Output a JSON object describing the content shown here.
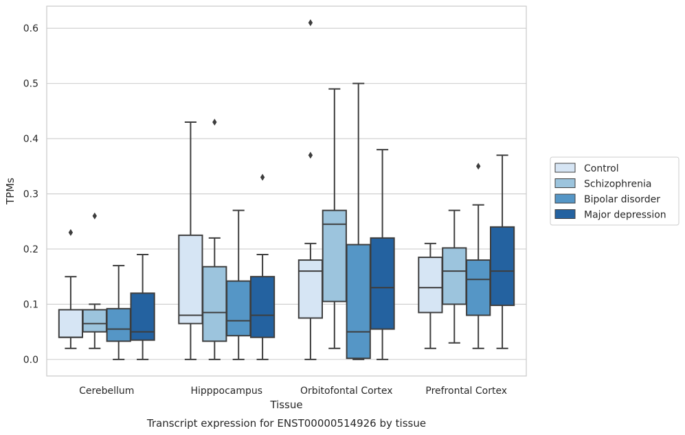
{
  "caption": "Transcript expression for ENST00000514926 by tissue",
  "chart_data": {
    "type": "box",
    "xlabel": "Tissue",
    "ylabel": "TPMs",
    "ylim": [
      -0.03,
      0.64
    ],
    "yticks": [
      0.0,
      0.1,
      0.2,
      0.3,
      0.4,
      0.5,
      0.6
    ],
    "ytick_labels": [
      "0.0",
      "0.1",
      "0.2",
      "0.3",
      "0.4",
      "0.5",
      "0.6"
    ],
    "grid": "horizontal",
    "legend_position": "right-outside",
    "categories": [
      "Cerebellum",
      "Hipppocampus",
      "Orbitofontal Cortex",
      "Prefrontal Cortex"
    ],
    "series": [
      {
        "name": "Control",
        "color": "#d6e5f4",
        "boxes": [
          {
            "whislo": 0.02,
            "q1": 0.04,
            "med": 0.04,
            "q3": 0.09,
            "whishi": 0.15,
            "fliers": [
              0.23
            ]
          },
          {
            "whislo": 0.0,
            "q1": 0.065,
            "med": 0.08,
            "q3": 0.225,
            "whishi": 0.43,
            "fliers": []
          },
          {
            "whislo": 0.0,
            "q1": 0.075,
            "med": 0.16,
            "q3": 0.18,
            "whishi": 0.21,
            "fliers": [
              0.37,
              0.61
            ]
          },
          {
            "whislo": 0.02,
            "q1": 0.085,
            "med": 0.13,
            "q3": 0.185,
            "whishi": 0.21,
            "fliers": []
          }
        ]
      },
      {
        "name": "Schizophrenia",
        "color": "#9cc4dd",
        "boxes": [
          {
            "whislo": 0.02,
            "q1": 0.05,
            "med": 0.065,
            "q3": 0.09,
            "whishi": 0.1,
            "fliers": [
              0.26
            ]
          },
          {
            "whislo": 0.0,
            "q1": 0.033,
            "med": 0.085,
            "q3": 0.168,
            "whishi": 0.22,
            "fliers": [
              0.43
            ]
          },
          {
            "whislo": 0.02,
            "q1": 0.105,
            "med": 0.245,
            "q3": 0.27,
            "whishi": 0.49,
            "fliers": []
          },
          {
            "whislo": 0.03,
            "q1": 0.1,
            "med": 0.16,
            "q3": 0.202,
            "whishi": 0.27,
            "fliers": []
          }
        ]
      },
      {
        "name": "Bipolar disorder",
        "color": "#5596c6",
        "boxes": [
          {
            "whislo": 0.0,
            "q1": 0.033,
            "med": 0.055,
            "q3": 0.092,
            "whishi": 0.17,
            "fliers": []
          },
          {
            "whislo": 0.0,
            "q1": 0.043,
            "med": 0.07,
            "q3": 0.142,
            "whishi": 0.27,
            "fliers": []
          },
          {
            "whislo": 0.0,
            "q1": 0.002,
            "med": 0.05,
            "q3": 0.208,
            "whishi": 0.5,
            "fliers": []
          },
          {
            "whislo": 0.02,
            "q1": 0.08,
            "med": 0.145,
            "q3": 0.18,
            "whishi": 0.28,
            "fliers": [
              0.35
            ]
          }
        ]
      },
      {
        "name": "Major depression",
        "color": "#2462a0",
        "boxes": [
          {
            "whislo": 0.0,
            "q1": 0.035,
            "med": 0.05,
            "q3": 0.12,
            "whishi": 0.19,
            "fliers": []
          },
          {
            "whislo": 0.0,
            "q1": 0.04,
            "med": 0.08,
            "q3": 0.15,
            "whishi": 0.19,
            "fliers": [
              0.33
            ]
          },
          {
            "whislo": 0.0,
            "q1": 0.055,
            "med": 0.13,
            "q3": 0.22,
            "whishi": 0.38,
            "fliers": []
          },
          {
            "whislo": 0.02,
            "q1": 0.098,
            "med": 0.16,
            "q3": 0.24,
            "whishi": 0.37,
            "fliers": []
          }
        ]
      }
    ]
  }
}
